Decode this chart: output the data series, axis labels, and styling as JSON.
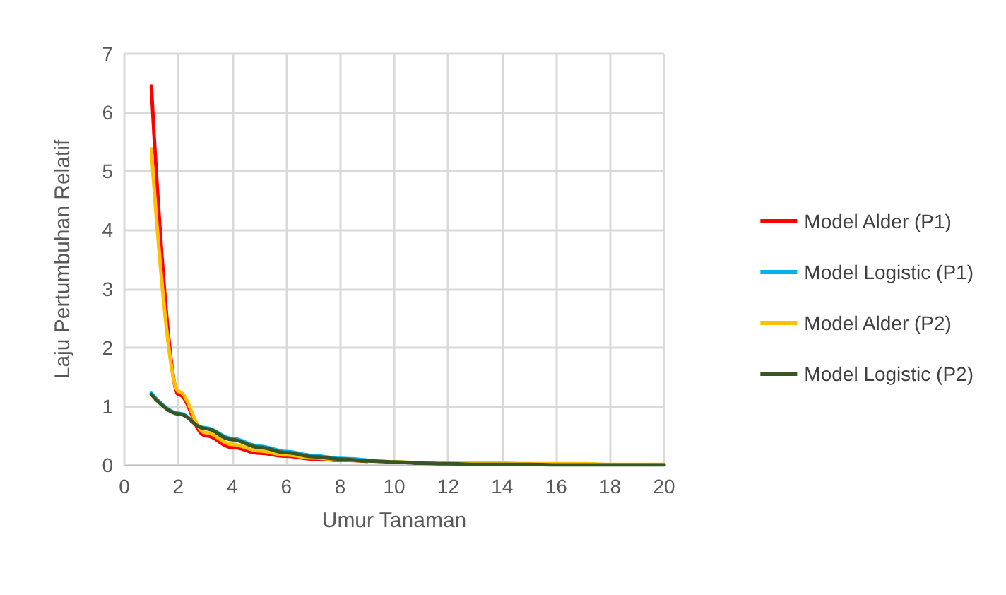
{
  "chart_data": {
    "type": "line",
    "xlabel": "Umur Tanaman",
    "ylabel": "Laju Pertumbuhan Relatif",
    "x": [
      1,
      2,
      3,
      4,
      5,
      6,
      7,
      8,
      9,
      10,
      11,
      12,
      13,
      14,
      15,
      16,
      17,
      18,
      19,
      20
    ],
    "series": [
      {
        "name": "Model Alder (P1)",
        "color": "#ff0000",
        "values": [
          6.45,
          1.2,
          0.5,
          0.3,
          0.2,
          0.15,
          0.1,
          0.08,
          0.06,
          null,
          null,
          null,
          null,
          null,
          null,
          null,
          null,
          null,
          null,
          null
        ]
      },
      {
        "name": "Model Logistic (P1)",
        "color": "#00b0f0",
        "values": [
          1.22,
          0.88,
          0.63,
          0.45,
          0.32,
          0.23,
          0.16,
          0.11,
          0.08,
          null,
          null,
          null,
          null,
          null,
          null,
          null,
          null,
          null,
          null,
          null
        ]
      },
      {
        "name": "Model Alder (P2)",
        "color": "#ffc000",
        "values": [
          5.38,
          1.25,
          0.55,
          0.35,
          0.24,
          0.17,
          0.12,
          0.09,
          0.07,
          0.05,
          0.04,
          0.04,
          0.03,
          0.03,
          0.02,
          0.02,
          0.02,
          0.01,
          0.01,
          0.01
        ]
      },
      {
        "name": "Model Logistic (P2)",
        "color": "#375623",
        "values": [
          1.2,
          0.87,
          0.62,
          0.43,
          0.3,
          0.21,
          0.14,
          0.1,
          0.07,
          0.05,
          0.03,
          0.02,
          0.01,
          0.01,
          0.01,
          0,
          0,
          0,
          0,
          0
        ]
      }
    ],
    "xlim": [
      0,
      20
    ],
    "xticks": [
      0,
      2,
      4,
      6,
      8,
      10,
      12,
      14,
      16,
      18,
      20
    ],
    "ylim": [
      0,
      7
    ],
    "yticks": [
      0,
      1,
      2,
      3,
      4,
      5,
      6,
      7
    ],
    "grid": true,
    "legend": "right",
    "marker": "none",
    "line_style": "solid"
  }
}
